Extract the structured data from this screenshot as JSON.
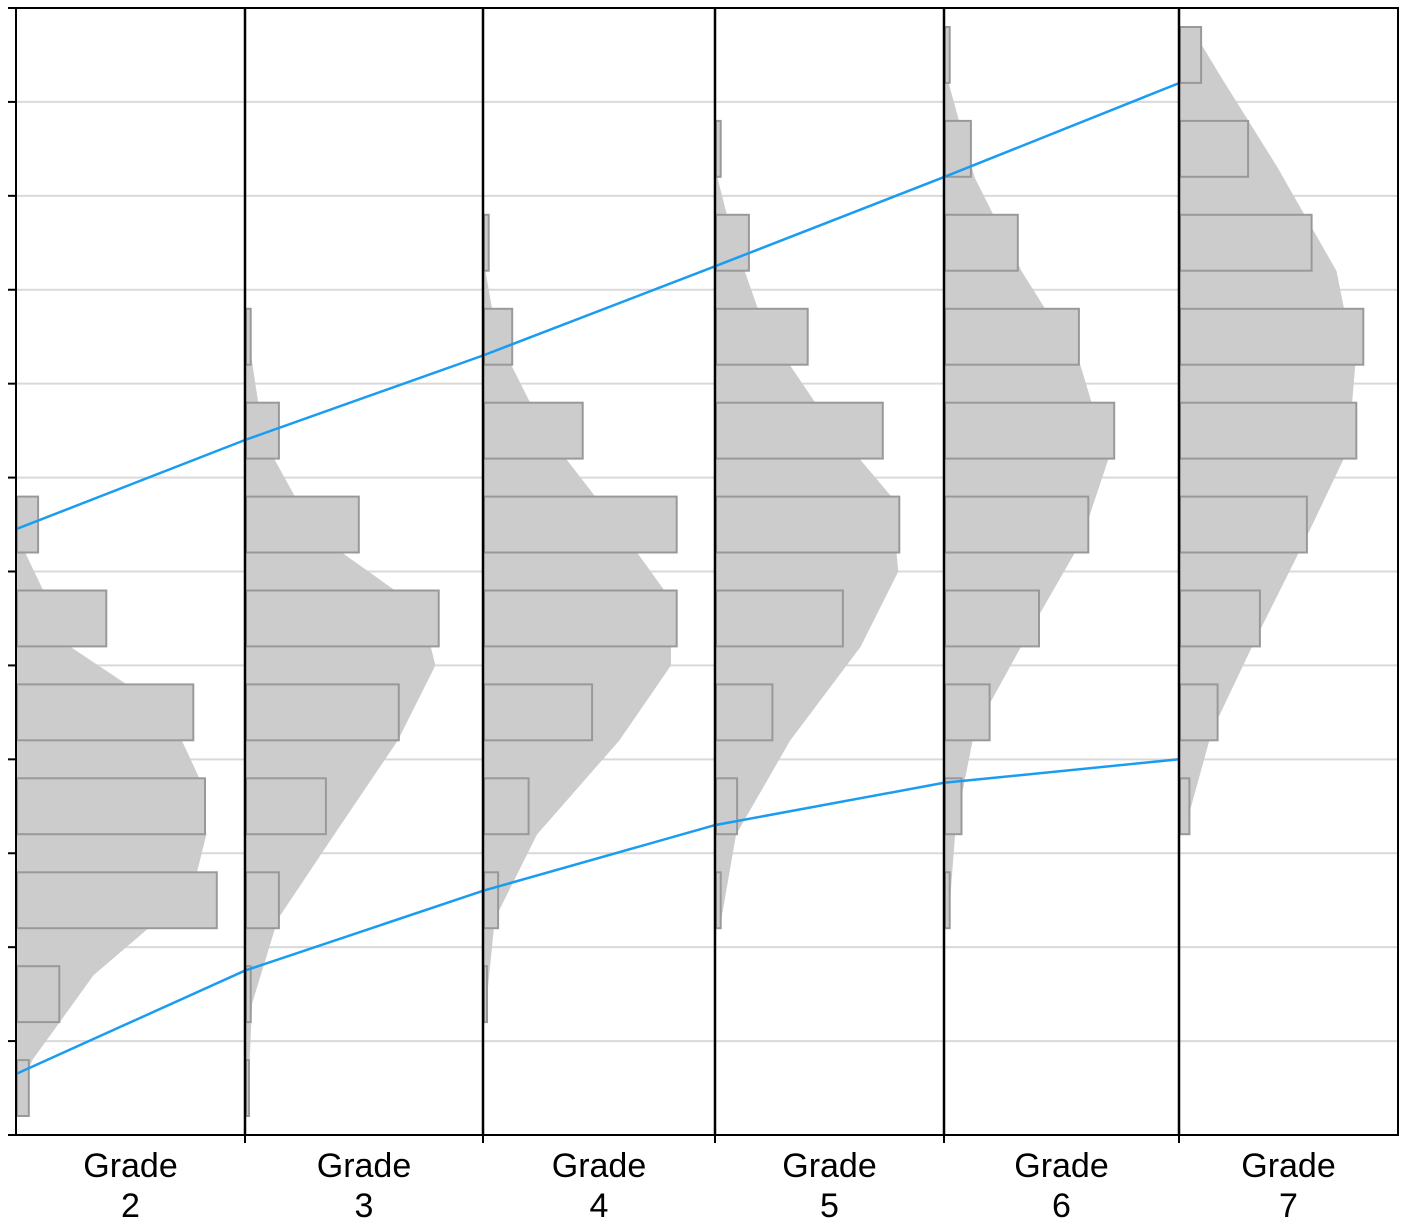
{
  "chart_data": {
    "type": "bar",
    "orientation": "horizontal",
    "description_of_values": "Proportion of students per score band in each grade",
    "grid": "horizontal",
    "legend": "none",
    "colors": {
      "bar_fill": "#cccccc",
      "bar_stroke": "#999999",
      "density_fill": "#cccccc",
      "reference_line": "#1a9cf0",
      "gridline": "#d9d9d9",
      "panel_border": "#000000"
    },
    "ylim": [
      0,
      12
    ],
    "band_count": 12,
    "xlim": [
      0,
      1
    ],
    "panels": [
      {
        "label_line1": "Grade",
        "label_line2": "2",
        "bars": [
          0.05,
          0.18,
          0.85,
          0.8,
          0.75,
          0.38,
          0.09
        ],
        "density": [
          [
            0.5,
            0.02
          ],
          [
            0.8,
            0.07
          ],
          [
            1.7,
            0.33
          ],
          [
            2.6,
            0.75
          ],
          [
            3.2,
            0.81
          ],
          [
            3.8,
            0.78
          ],
          [
            4.5,
            0.65
          ],
          [
            5.2,
            0.23
          ],
          [
            6.3,
            0.02
          ]
        ],
        "bands": [
          0,
          1,
          2,
          3,
          4,
          5,
          6
        ],
        "line_points": {
          "low": 0.65,
          "high": 6.45
        }
      },
      {
        "label_line1": "Grade",
        "label_line2": "3",
        "bars": [
          0.01,
          0.02,
          0.14,
          0.34,
          0.65,
          0.82,
          0.48,
          0.14,
          0.02
        ],
        "density": [
          [
            0.2,
            0.01
          ],
          [
            1.4,
            0.03
          ],
          [
            2.3,
            0.14
          ],
          [
            3.2,
            0.38
          ],
          [
            4.2,
            0.65
          ],
          [
            5.0,
            0.81
          ],
          [
            5.6,
            0.75
          ],
          [
            6.4,
            0.3
          ],
          [
            7.4,
            0.08
          ],
          [
            8.4,
            0.02
          ]
        ],
        "bands": [
          0,
          1,
          2,
          3,
          4,
          5,
          6,
          7,
          8
        ],
        "line_points": {
          "low": 1.75,
          "high": 7.4
        }
      },
      {
        "label_line1": "Grade",
        "label_line2": "4",
        "bars": [
          0.01,
          0.06,
          0.19,
          0.46,
          0.82,
          0.82,
          0.42,
          0.12,
          0.02
        ],
        "density": [
          [
            1.3,
            0.01
          ],
          [
            2.3,
            0.05
          ],
          [
            3.2,
            0.23
          ],
          [
            4.2,
            0.58
          ],
          [
            5.0,
            0.8
          ],
          [
            5.7,
            0.8
          ],
          [
            6.5,
            0.57
          ],
          [
            7.5,
            0.26
          ],
          [
            8.5,
            0.06
          ],
          [
            9.2,
            0.01
          ]
        ],
        "bands": [
          1,
          2,
          3,
          4,
          5,
          6,
          7,
          8,
          9
        ],
        "line_points": {
          "low": 2.6,
          "high": 8.3
        }
      },
      {
        "label_line1": "Grade",
        "label_line2": "5",
        "bars": [
          0.02,
          0.09,
          0.24,
          0.54,
          0.78,
          0.71,
          0.39,
          0.14,
          0.02
        ],
        "density": [
          [
            2.2,
            0.02
          ],
          [
            3.2,
            0.09
          ],
          [
            4.2,
            0.32
          ],
          [
            5.2,
            0.62
          ],
          [
            6.0,
            0.78
          ],
          [
            6.8,
            0.75
          ],
          [
            7.6,
            0.48
          ],
          [
            8.6,
            0.21
          ],
          [
            9.6,
            0.07
          ],
          [
            10.2,
            0.01
          ]
        ],
        "bands": [
          2,
          3,
          4,
          5,
          6,
          7,
          8,
          9,
          10
        ],
        "line_points": {
          "low": 3.3,
          "high": 9.25
        }
      },
      {
        "label_line1": "Grade",
        "label_line2": "6",
        "bars": [
          0.02,
          0.07,
          0.19,
          0.4,
          0.61,
          0.72,
          0.57,
          0.31,
          0.11,
          0.02
        ],
        "density": [
          [
            2.3,
            0.02
          ],
          [
            3.3,
            0.05
          ],
          [
            4.3,
            0.13
          ],
          [
            5.3,
            0.35
          ],
          [
            6.3,
            0.58
          ],
          [
            7.2,
            0.7
          ],
          [
            8.2,
            0.58
          ],
          [
            9.2,
            0.33
          ],
          [
            10.2,
            0.13
          ],
          [
            11.2,
            0.02
          ]
        ],
        "bands": [
          2,
          3,
          4,
          5,
          6,
          7,
          8,
          9,
          10,
          11
        ],
        "line_points": {
          "low": 3.75,
          "high": 10.2
        }
      },
      {
        "label_line1": "Grade",
        "label_line2": "7",
        "bars": [
          0.04,
          0.16,
          0.34,
          0.54,
          0.75,
          0.78,
          0.56,
          0.29,
          0.09
        ],
        "density": [
          [
            3.3,
            0.03
          ],
          [
            4.3,
            0.14
          ],
          [
            5.3,
            0.33
          ],
          [
            6.3,
            0.53
          ],
          [
            7.3,
            0.72
          ],
          [
            8.2,
            0.75
          ],
          [
            9.2,
            0.67
          ],
          [
            10.3,
            0.42
          ],
          [
            11.3,
            0.17
          ],
          [
            11.8,
            0.05
          ]
        ],
        "bands": [
          3,
          4,
          5,
          6,
          7,
          8,
          9,
          10,
          11
        ],
        "line_points": {
          "low": 4.0,
          "high": 11.2
        }
      }
    ]
  }
}
